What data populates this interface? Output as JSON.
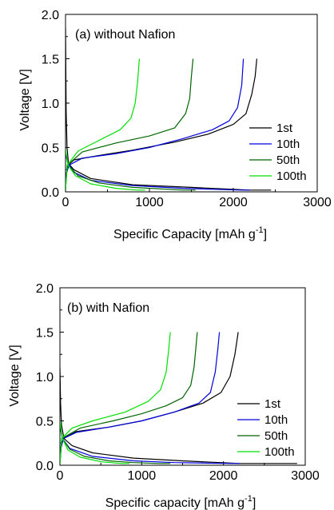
{
  "chart_data": [
    {
      "type": "line",
      "annotation": "(a)  without Nafion",
      "xlabel": "Specific Capacity [mAh g",
      "xlabel_sup": "-1",
      "xlabel_end": "]",
      "ylabel": "Voltage [V]",
      "xlim": [
        0,
        3000
      ],
      "ylim": [
        0,
        2.0
      ],
      "xticks": [
        "0",
        "1000",
        "2000",
        "3000"
      ],
      "yticks": [
        "0.0",
        "0.5",
        "1.0",
        "1.5",
        "2.0"
      ],
      "legend_position": "right",
      "series": [
        {
          "name": "1st",
          "color": "#000000",
          "discharge": [
            [
              0,
              1.85
            ],
            [
              8,
              0.9
            ],
            [
              18,
              0.5
            ],
            [
              35,
              0.32
            ],
            [
              100,
              0.25
            ],
            [
              300,
              0.15
            ],
            [
              800,
              0.08
            ],
            [
              1500,
              0.05
            ],
            [
              2200,
              0.02
            ],
            [
              2450,
              0.02
            ]
          ],
          "charge": [
            [
              0,
              0.02
            ],
            [
              10,
              0.2
            ],
            [
              30,
              0.3
            ],
            [
              100,
              0.36
            ],
            [
              400,
              0.41
            ],
            [
              800,
              0.47
            ],
            [
              1300,
              0.56
            ],
            [
              1700,
              0.65
            ],
            [
              2000,
              0.76
            ],
            [
              2150,
              0.88
            ],
            [
              2220,
              1.1
            ],
            [
              2260,
              1.3
            ],
            [
              2280,
              1.5
            ]
          ]
        },
        {
          "name": "10th",
          "color": "#0000dd",
          "discharge": [
            [
              0,
              0.42
            ],
            [
              30,
              0.33
            ],
            [
              100,
              0.22
            ],
            [
              300,
              0.13
            ],
            [
              800,
              0.07
            ],
            [
              1400,
              0.04
            ],
            [
              2100,
              0.02
            ],
            [
              2200,
              0.02
            ]
          ],
          "charge": [
            [
              0,
              0.02
            ],
            [
              10,
              0.2
            ],
            [
              40,
              0.3
            ],
            [
              200,
              0.38
            ],
            [
              600,
              0.43
            ],
            [
              1000,
              0.5
            ],
            [
              1400,
              0.6
            ],
            [
              1750,
              0.7
            ],
            [
              1950,
              0.8
            ],
            [
              2050,
              0.95
            ],
            [
              2100,
              1.2
            ],
            [
              2120,
              1.5
            ]
          ]
        },
        {
          "name": "50th",
          "color": "#006400",
          "discharge": [
            [
              0,
              0.45
            ],
            [
              30,
              0.3
            ],
            [
              150,
              0.18
            ],
            [
              400,
              0.1
            ],
            [
              800,
              0.05
            ],
            [
              1400,
              0.02
            ],
            [
              1550,
              0.02
            ]
          ],
          "charge": [
            [
              0,
              0.02
            ],
            [
              20,
              0.3
            ],
            [
              200,
              0.45
            ],
            [
              600,
              0.55
            ],
            [
              1000,
              0.63
            ],
            [
              1300,
              0.72
            ],
            [
              1430,
              0.88
            ],
            [
              1480,
              1.05
            ],
            [
              1500,
              1.3
            ],
            [
              1520,
              1.5
            ]
          ]
        },
        {
          "name": "100th",
          "color": "#00e000",
          "discharge": [
            [
              0,
              0.48
            ],
            [
              30,
              0.3
            ],
            [
              120,
              0.18
            ],
            [
              300,
              0.09
            ],
            [
              600,
              0.04
            ],
            [
              850,
              0.02
            ],
            [
              950,
              0.02
            ]
          ],
          "charge": [
            [
              0,
              0.02
            ],
            [
              20,
              0.3
            ],
            [
              150,
              0.46
            ],
            [
              400,
              0.58
            ],
            [
              650,
              0.7
            ],
            [
              780,
              0.83
            ],
            [
              830,
              1.0
            ],
            [
              860,
              1.25
            ],
            [
              880,
              1.5
            ]
          ]
        }
      ]
    },
    {
      "type": "line",
      "annotation": "(b)  with Nafion",
      "xlabel": "Specific capacity [mAh g",
      "xlabel_sup": "-1",
      "xlabel_end": "]",
      "ylabel": "Voltage [V]",
      "xlim": [
        0,
        3000
      ],
      "ylim": [
        0,
        2.0
      ],
      "xticks": [
        "0",
        "1000",
        "2000",
        "3000"
      ],
      "yticks": [
        "0.0",
        "0.5",
        "1.0",
        "1.5",
        "2.0"
      ],
      "legend_position": "right",
      "series": [
        {
          "name": "1st",
          "color": "#000000",
          "discharge": [
            [
              0,
              1.1
            ],
            [
              8,
              0.7
            ],
            [
              20,
              0.45
            ],
            [
              50,
              0.3
            ],
            [
              150,
              0.22
            ],
            [
              400,
              0.14
            ],
            [
              900,
              0.08
            ],
            [
              1500,
              0.05
            ],
            [
              2200,
              0.02
            ],
            [
              2900,
              0.02
            ]
          ],
          "charge": [
            [
              0,
              0.02
            ],
            [
              15,
              0.2
            ],
            [
              40,
              0.3
            ],
            [
              200,
              0.38
            ],
            [
              600,
              0.43
            ],
            [
              1000,
              0.5
            ],
            [
              1400,
              0.6
            ],
            [
              1750,
              0.7
            ],
            [
              1970,
              0.82
            ],
            [
              2080,
              1.0
            ],
            [
              2140,
              1.25
            ],
            [
              2180,
              1.5
            ]
          ]
        },
        {
          "name": "10th",
          "color": "#0000dd",
          "discharge": [
            [
              0,
              0.44
            ],
            [
              30,
              0.3
            ],
            [
              120,
              0.19
            ],
            [
              400,
              0.1
            ],
            [
              900,
              0.05
            ],
            [
              1400,
              0.03
            ],
            [
              2100,
              0.02
            ],
            [
              2200,
              0.02
            ]
          ],
          "charge": [
            [
              0,
              0.02
            ],
            [
              15,
              0.2
            ],
            [
              40,
              0.3
            ],
            [
              200,
              0.37
            ],
            [
              600,
              0.43
            ],
            [
              1000,
              0.5
            ],
            [
              1400,
              0.6
            ],
            [
              1700,
              0.7
            ],
            [
              1840,
              0.82
            ],
            [
              1900,
              1.05
            ],
            [
              1930,
              1.3
            ],
            [
              1950,
              1.5
            ]
          ]
        },
        {
          "name": "50th",
          "color": "#006400",
          "discharge": [
            [
              0,
              0.46
            ],
            [
              30,
              0.3
            ],
            [
              120,
              0.18
            ],
            [
              300,
              0.1
            ],
            [
              600,
              0.05
            ],
            [
              900,
              0.03
            ],
            [
              1200,
              0.02
            ],
            [
              1350,
              0.02
            ]
          ],
          "charge": [
            [
              0,
              0.02
            ],
            [
              20,
              0.3
            ],
            [
              250,
              0.42
            ],
            [
              650,
              0.5
            ],
            [
              1000,
              0.58
            ],
            [
              1300,
              0.67
            ],
            [
              1500,
              0.76
            ],
            [
              1600,
              0.9
            ],
            [
              1640,
              1.1
            ],
            [
              1660,
              1.3
            ],
            [
              1680,
              1.5
            ]
          ]
        },
        {
          "name": "100th",
          "color": "#00e000",
          "discharge": [
            [
              0,
              0.5
            ],
            [
              30,
              0.3
            ],
            [
              100,
              0.17
            ],
            [
              250,
              0.09
            ],
            [
              500,
              0.04
            ],
            [
              750,
              0.02
            ],
            [
              850,
              0.02
            ]
          ],
          "charge": [
            [
              0,
              0.02
            ],
            [
              20,
              0.3
            ],
            [
              150,
              0.42
            ],
            [
              400,
              0.5
            ],
            [
              800,
              0.6
            ],
            [
              1080,
              0.72
            ],
            [
              1230,
              0.85
            ],
            [
              1300,
              1.05
            ],
            [
              1330,
              1.3
            ],
            [
              1350,
              1.5
            ]
          ]
        }
      ]
    }
  ]
}
